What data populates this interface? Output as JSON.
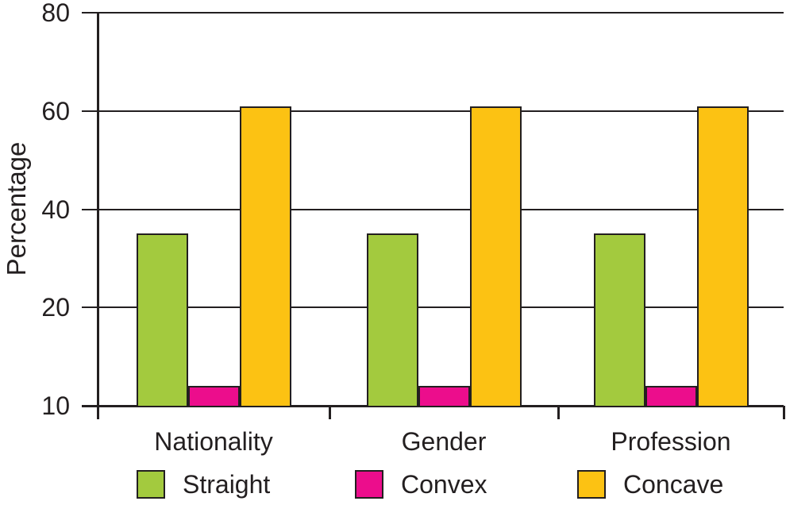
{
  "chart_data": {
    "type": "bar",
    "title": "",
    "xlabel": "",
    "ylabel": "Percentage",
    "categories": [
      "Nationality",
      "Gender",
      "Profession"
    ],
    "series": [
      {
        "name": "Straight",
        "color": "#a3ca3e",
        "values": [
          35,
          35,
          35
        ]
      },
      {
        "name": "Convex",
        "color": "#ec0d8c",
        "values": [
          12,
          12,
          12
        ]
      },
      {
        "name": "Concave",
        "color": "#fcc213",
        "values": [
          61,
          61,
          61
        ]
      }
    ],
    "y_ticks": [
      10,
      20,
      40,
      60,
      80
    ],
    "ylim": [
      10,
      80
    ],
    "grid": true,
    "legend_position": "bottom",
    "legend": [
      "Straight",
      "Convex",
      "Concave"
    ],
    "colors": {
      "axis": "#231f20",
      "background": "#ffffff"
    }
  }
}
